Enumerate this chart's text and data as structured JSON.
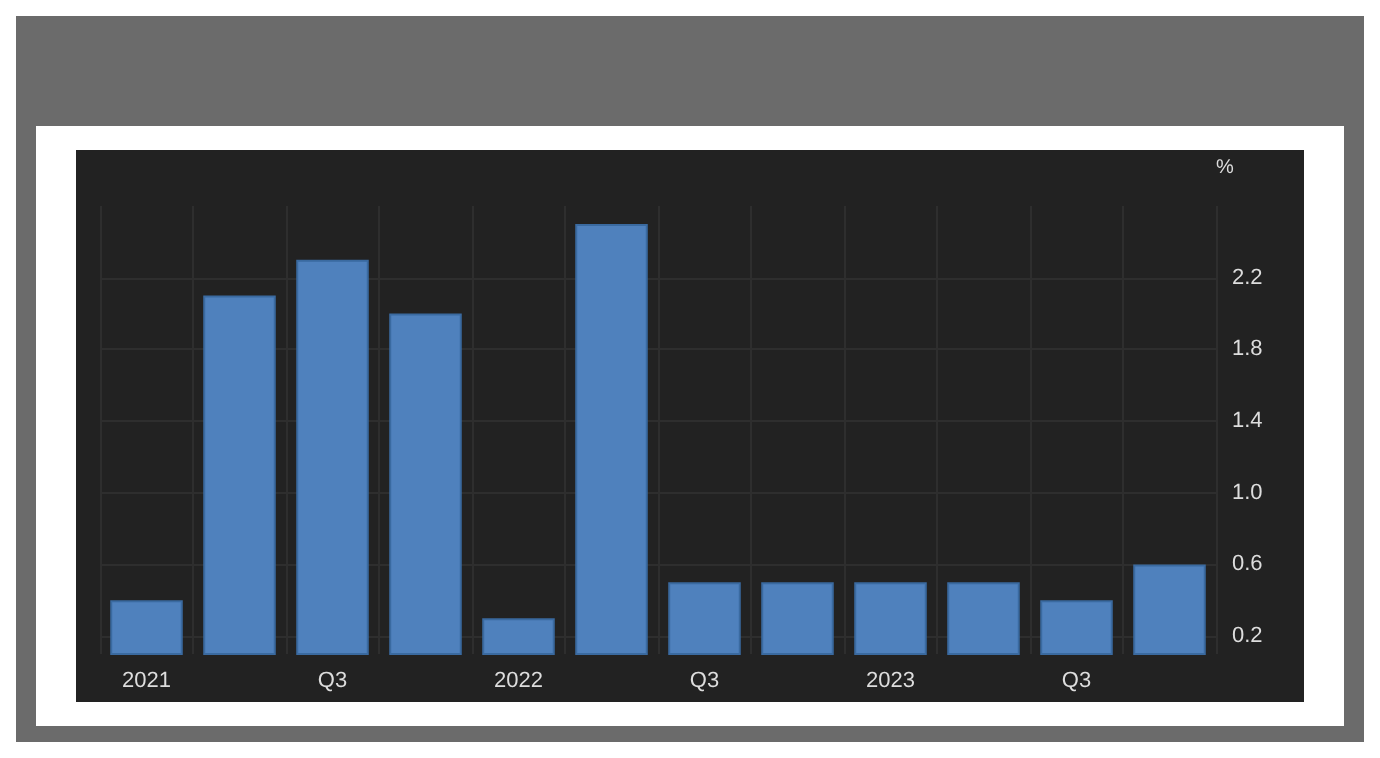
{
  "chart_data": {
    "type": "bar",
    "ylabel": "%",
    "categories": [
      "2021",
      null,
      "Q3",
      null,
      "2022",
      null,
      "Q3",
      null,
      "2023",
      null,
      "Q3",
      null
    ],
    "values": [
      0.4,
      2.1,
      2.3,
      2.0,
      0.3,
      2.5,
      0.5,
      0.5,
      0.5,
      0.5,
      0.4,
      0.6
    ],
    "color": "#4f81bd",
    "ylim": [
      0.1,
      2.6
    ],
    "yticks": [
      0.2,
      0.6,
      {
        "value": 1,
        "label": "1.0"
      },
      1.4,
      1.8,
      2.2
    ],
    "grid": true
  }
}
